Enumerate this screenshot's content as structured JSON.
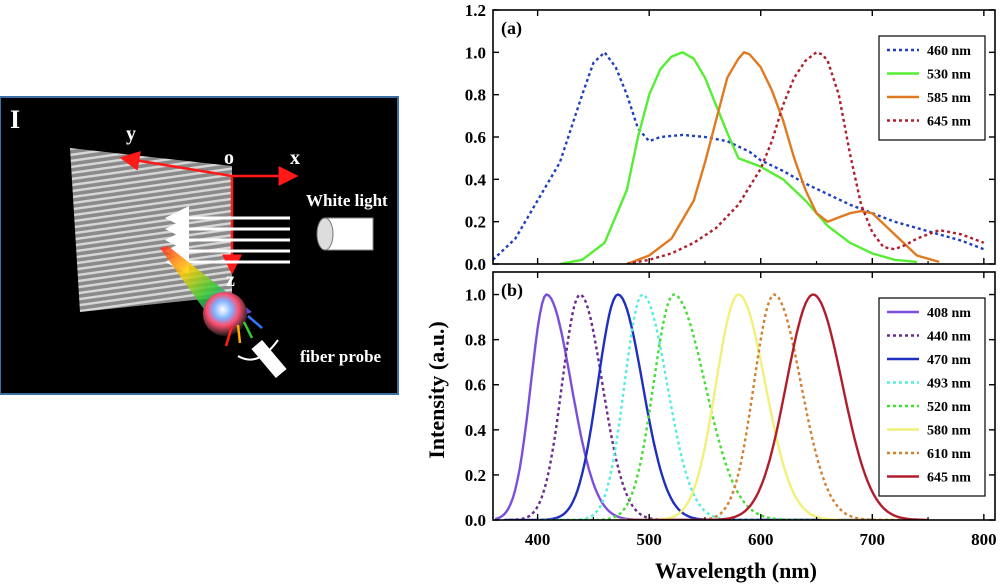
{
  "schematic": {
    "panel_label": "I",
    "axes": {
      "origin": "o",
      "x": "x",
      "y": "y",
      "z": "z"
    },
    "white_light_label": "White light",
    "probe_label": "fiber probe",
    "colors": {
      "background": "#000000",
      "border": "#3a6fa5",
      "axis": "#ff1a1a",
      "beam": "#ffffff"
    }
  },
  "figure_text": {
    "y_label": "Intensity (a.u.)",
    "x_label": "Wavelength (nm)"
  },
  "chart_data": [
    {
      "type": "line",
      "panel_label": "(a)",
      "xlim": [
        360,
        810
      ],
      "ylim": [
        0,
        1.2
      ],
      "xticks": [
        400,
        500,
        600,
        700,
        800
      ],
      "yticks": [
        0.0,
        0.2,
        0.4,
        0.6,
        0.8,
        1.0,
        1.2
      ],
      "ytick_labels": [
        "0.0",
        "0.2",
        "0.4",
        "0.6",
        "0.8",
        "1.0",
        "1.2"
      ],
      "legend_position": "top-right",
      "series": [
        {
          "name": "460 nm",
          "color": "#1f3fbf",
          "dash": "dotted",
          "x": [
            360,
            380,
            400,
            420,
            440,
            450,
            460,
            470,
            480,
            490,
            500,
            510,
            530,
            550,
            570,
            590,
            600,
            620,
            640,
            660,
            680,
            700,
            720,
            740,
            760,
            780,
            800
          ],
          "y": [
            0.02,
            0.12,
            0.3,
            0.48,
            0.8,
            0.95,
            1.0,
            0.93,
            0.8,
            0.64,
            0.58,
            0.6,
            0.61,
            0.6,
            0.58,
            0.53,
            0.49,
            0.44,
            0.38,
            0.33,
            0.28,
            0.24,
            0.2,
            0.17,
            0.14,
            0.11,
            0.07
          ]
        },
        {
          "name": "530 nm",
          "color": "#55ee33",
          "dash": "solid",
          "x": [
            420,
            440,
            460,
            480,
            490,
            500,
            510,
            520,
            530,
            540,
            550,
            560,
            570,
            580,
            590,
            600,
            620,
            640,
            660,
            680,
            700,
            720,
            740
          ],
          "y": [
            0.0,
            0.02,
            0.1,
            0.35,
            0.6,
            0.8,
            0.92,
            0.98,
            1.0,
            0.97,
            0.88,
            0.75,
            0.62,
            0.5,
            0.48,
            0.46,
            0.4,
            0.3,
            0.18,
            0.1,
            0.05,
            0.02,
            0.01
          ]
        },
        {
          "name": "585 nm",
          "color": "#e07a20",
          "dash": "solid",
          "x": [
            480,
            500,
            520,
            540,
            550,
            560,
            570,
            580,
            585,
            590,
            600,
            610,
            620,
            630,
            640,
            650,
            660,
            670,
            680,
            690,
            700,
            720,
            740,
            760
          ],
          "y": [
            0.0,
            0.04,
            0.12,
            0.3,
            0.48,
            0.68,
            0.88,
            0.97,
            1.0,
            0.99,
            0.93,
            0.82,
            0.68,
            0.5,
            0.35,
            0.24,
            0.2,
            0.22,
            0.24,
            0.25,
            0.24,
            0.14,
            0.04,
            0.01
          ]
        },
        {
          "name": "645 nm",
          "color": "#b01e2e",
          "dash": "dotted",
          "x": [
            480,
            500,
            520,
            540,
            560,
            580,
            600,
            610,
            620,
            630,
            640,
            650,
            655,
            660,
            670,
            680,
            690,
            700,
            710,
            720,
            730,
            740,
            760,
            780,
            800
          ],
          "y": [
            0.0,
            0.02,
            0.05,
            0.1,
            0.17,
            0.28,
            0.45,
            0.58,
            0.75,
            0.88,
            0.96,
            1.0,
            0.99,
            0.96,
            0.8,
            0.52,
            0.28,
            0.15,
            0.08,
            0.07,
            0.09,
            0.12,
            0.16,
            0.14,
            0.1
          ]
        }
      ]
    },
    {
      "type": "line",
      "panel_label": "(b)",
      "xlim": [
        360,
        810
      ],
      "ylim": [
        0,
        1.1
      ],
      "xticks": [
        400,
        500,
        600,
        700,
        800
      ],
      "xtick_labels": [
        "400",
        "500",
        "600",
        "700",
        "800"
      ],
      "yticks": [
        0.0,
        0.2,
        0.4,
        0.6,
        0.8,
        1.0
      ],
      "ytick_labels": [
        "0.0",
        "0.2",
        "0.4",
        "0.6",
        "0.8",
        "1.0"
      ],
      "legend_position": "top-right",
      "series": [
        {
          "name": "408 nm",
          "color": "#7a4fe0",
          "dash": "solid",
          "peak": 408,
          "left_width": 14,
          "right_width": 22,
          "x_range": [
            362,
            700
          ]
        },
        {
          "name": "440 nm",
          "color": "#6a2a8e",
          "dash": "dotted",
          "peak": 438,
          "left_width": 16,
          "right_width": 20,
          "x_range": [
            375,
            560
          ]
        },
        {
          "name": "470 nm",
          "color": "#1f2fbf",
          "dash": "solid",
          "peak": 472,
          "left_width": 18,
          "right_width": 22,
          "x_range": [
            370,
            700
          ]
        },
        {
          "name": "493 nm",
          "color": "#55eedd",
          "dash": "dotted",
          "peak": 494,
          "left_width": 16,
          "right_width": 22,
          "x_range": [
            400,
            600
          ]
        },
        {
          "name": "520 nm",
          "color": "#44dd33",
          "dash": "dotted",
          "peak": 522,
          "left_width": 18,
          "right_width": 28,
          "x_range": [
            420,
            650
          ]
        },
        {
          "name": "580 nm",
          "color": "#f0f07a",
          "dash": "solid",
          "peak": 580,
          "left_width": 20,
          "right_width": 24,
          "x_range": [
            470,
            720
          ]
        },
        {
          "name": "610 nm",
          "color": "#d08030",
          "dash": "dotted",
          "peak": 612,
          "left_width": 18,
          "right_width": 24,
          "x_range": [
            500,
            750
          ]
        },
        {
          "name": "645 nm",
          "color": "#b01e2e",
          "dash": "solid",
          "peak": 647,
          "left_width": 24,
          "right_width": 26,
          "x_range": [
            480,
            750
          ]
        }
      ]
    }
  ]
}
